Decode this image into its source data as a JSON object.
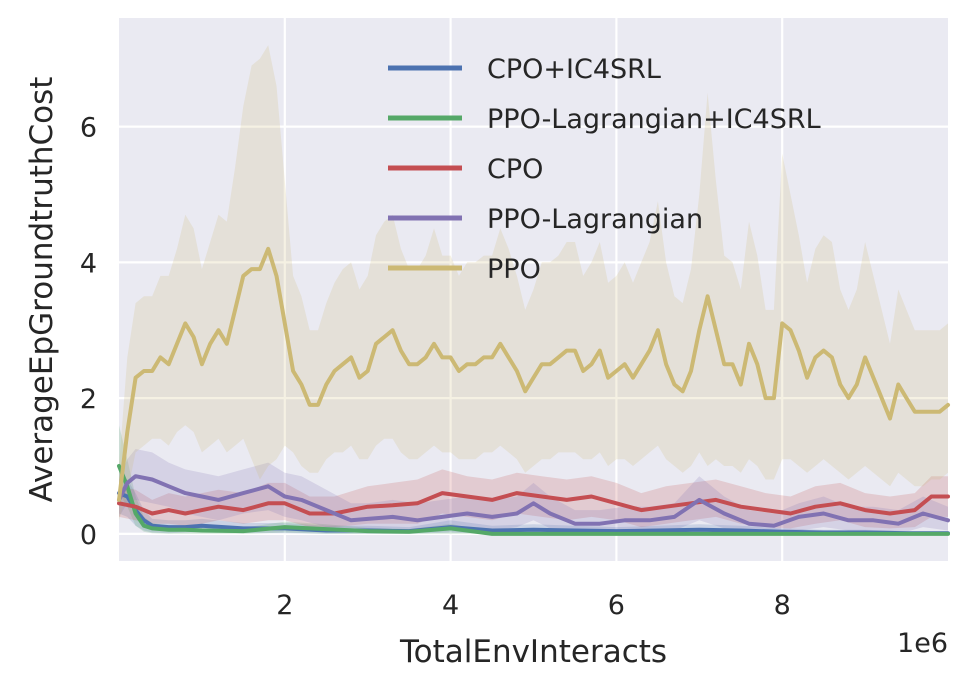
{
  "chart_data": {
    "type": "line",
    "title": "",
    "xlabel": "TotalEnvInteracts",
    "ylabel": "AverageEpGroundtruthCost",
    "x_offset_text": "1e6",
    "xlim": [
      0.0,
      10.0
    ],
    "ylim": [
      -0.4,
      7.6
    ],
    "xticks": [
      2,
      4,
      6,
      8
    ],
    "yticks": [
      0,
      2,
      4,
      6
    ],
    "xtick_labels": [
      "2",
      "4",
      "6",
      "8"
    ],
    "ytick_labels": [
      "0",
      "2",
      "4",
      "6"
    ],
    "grid": true,
    "background": "#eaeaf2",
    "legend_position": "top-right",
    "series": [
      {
        "name": "CPO+IC4SRL",
        "color": "#4c72b0",
        "x": [
          0.0,
          0.1,
          0.2,
          0.3,
          0.4,
          0.6,
          0.8,
          1.0,
          1.5,
          2.0,
          2.5,
          3.0,
          3.5,
          4.0,
          4.5,
          5.0,
          5.5,
          6.0,
          6.5,
          7.0,
          7.5,
          8.0,
          8.5,
          9.0,
          9.5,
          10.0
        ],
        "y": [
          0.6,
          0.55,
          0.35,
          0.2,
          0.12,
          0.1,
          0.1,
          0.12,
          0.08,
          0.08,
          0.05,
          0.05,
          0.04,
          0.1,
          0.05,
          0.06,
          0.05,
          0.04,
          0.05,
          0.06,
          0.05,
          0.03,
          0.02,
          0.02,
          0.01,
          0.01
        ],
        "band_lower": [
          0.3,
          0.25,
          0.12,
          0.05,
          0.02,
          0.01,
          0.02,
          0.03,
          0.01,
          0.01,
          0.0,
          0.0,
          0.0,
          0.02,
          0.0,
          0.0,
          0.0,
          0.0,
          0.0,
          0.0,
          0.0,
          0.0,
          0.0,
          0.0,
          0.0,
          0.0
        ],
        "band_upper": [
          0.9,
          0.8,
          0.6,
          0.35,
          0.22,
          0.2,
          0.2,
          0.22,
          0.16,
          0.16,
          0.12,
          0.12,
          0.1,
          0.2,
          0.12,
          0.14,
          0.12,
          0.1,
          0.12,
          0.14,
          0.12,
          0.08,
          0.06,
          0.06,
          0.04,
          0.04
        ]
      },
      {
        "name": "PPO-Lagrangian+IC4SRL",
        "color": "#55a868",
        "x": [
          0.0,
          0.1,
          0.2,
          0.3,
          0.4,
          0.6,
          0.8,
          1.0,
          1.5,
          2.0,
          2.5,
          3.0,
          3.5,
          4.0,
          4.5,
          5.0,
          5.5,
          6.0,
          6.5,
          7.0,
          7.5,
          8.0,
          8.5,
          9.0,
          9.5,
          10.0
        ],
        "y": [
          1.0,
          0.7,
          0.3,
          0.12,
          0.08,
          0.06,
          0.06,
          0.05,
          0.04,
          0.1,
          0.07,
          0.04,
          0.03,
          0.08,
          0.0,
          0.0,
          0.0,
          0.0,
          0.0,
          0.0,
          0.0,
          0.0,
          0.0,
          0.0,
          0.0,
          0.0
        ],
        "band_lower": [
          0.6,
          0.4,
          0.12,
          0.03,
          0.01,
          0.0,
          0.0,
          0.0,
          0.0,
          0.02,
          0.0,
          0.0,
          0.0,
          0.0,
          0.0,
          0.0,
          0.0,
          0.0,
          0.0,
          0.0,
          0.0,
          0.0,
          0.0,
          0.0,
          0.0,
          0.0
        ],
        "band_upper": [
          1.6,
          1.1,
          0.55,
          0.25,
          0.16,
          0.12,
          0.12,
          0.1,
          0.09,
          0.18,
          0.14,
          0.09,
          0.07,
          0.15,
          0.02,
          0.02,
          0.02,
          0.02,
          0.02,
          0.02,
          0.02,
          0.02,
          0.02,
          0.02,
          0.02,
          0.02
        ]
      },
      {
        "name": "CPO",
        "color": "#c44e52",
        "x": [
          0.0,
          0.2,
          0.4,
          0.6,
          0.8,
          1.0,
          1.2,
          1.5,
          1.8,
          2.0,
          2.3,
          2.6,
          3.0,
          3.3,
          3.6,
          3.9,
          4.2,
          4.5,
          4.8,
          5.1,
          5.4,
          5.7,
          6.0,
          6.3,
          6.6,
          6.9,
          7.2,
          7.5,
          7.8,
          8.1,
          8.4,
          8.7,
          9.0,
          9.3,
          9.6,
          9.8,
          10.0
        ],
        "y": [
          0.45,
          0.4,
          0.3,
          0.35,
          0.3,
          0.35,
          0.4,
          0.35,
          0.45,
          0.45,
          0.3,
          0.3,
          0.4,
          0.42,
          0.45,
          0.6,
          0.55,
          0.5,
          0.6,
          0.55,
          0.5,
          0.55,
          0.45,
          0.35,
          0.4,
          0.45,
          0.5,
          0.4,
          0.35,
          0.3,
          0.4,
          0.45,
          0.35,
          0.3,
          0.35,
          0.55,
          0.55
        ],
        "band_lower": [
          0.25,
          0.2,
          0.15,
          0.15,
          0.12,
          0.15,
          0.2,
          0.15,
          0.2,
          0.2,
          0.1,
          0.1,
          0.15,
          0.15,
          0.15,
          0.3,
          0.25,
          0.2,
          0.3,
          0.25,
          0.2,
          0.25,
          0.2,
          0.1,
          0.15,
          0.2,
          0.25,
          0.15,
          0.1,
          0.08,
          0.15,
          0.2,
          0.1,
          0.08,
          0.1,
          0.25,
          0.25
        ],
        "band_upper": [
          0.7,
          0.65,
          0.5,
          0.6,
          0.55,
          0.6,
          0.65,
          0.6,
          0.75,
          0.75,
          0.55,
          0.55,
          0.7,
          0.75,
          0.8,
          0.95,
          0.85,
          0.8,
          0.9,
          0.85,
          0.8,
          0.85,
          0.75,
          0.6,
          0.7,
          0.75,
          0.8,
          0.7,
          0.6,
          0.55,
          0.7,
          0.75,
          0.6,
          0.55,
          0.6,
          0.85,
          0.85
        ]
      },
      {
        "name": "PPO-Lagrangian",
        "color": "#8172b2",
        "x": [
          0.0,
          0.1,
          0.2,
          0.4,
          0.6,
          0.8,
          1.0,
          1.2,
          1.5,
          1.8,
          2.0,
          2.2,
          2.5,
          2.8,
          3.0,
          3.3,
          3.6,
          3.9,
          4.2,
          4.5,
          4.8,
          5.0,
          5.2,
          5.5,
          5.8,
          6.1,
          6.4,
          6.7,
          7.0,
          7.3,
          7.6,
          7.9,
          8.2,
          8.5,
          8.8,
          9.1,
          9.4,
          9.7,
          10.0
        ],
        "y": [
          0.5,
          0.75,
          0.85,
          0.8,
          0.7,
          0.6,
          0.55,
          0.5,
          0.6,
          0.7,
          0.55,
          0.5,
          0.35,
          0.2,
          0.22,
          0.25,
          0.2,
          0.25,
          0.3,
          0.25,
          0.3,
          0.45,
          0.3,
          0.15,
          0.15,
          0.2,
          0.2,
          0.25,
          0.5,
          0.3,
          0.15,
          0.12,
          0.25,
          0.3,
          0.2,
          0.2,
          0.15,
          0.3,
          0.2
        ],
        "band_lower": [
          0.25,
          0.45,
          0.5,
          0.45,
          0.4,
          0.3,
          0.25,
          0.2,
          0.3,
          0.35,
          0.25,
          0.2,
          0.1,
          0.05,
          0.05,
          0.08,
          0.05,
          0.08,
          0.1,
          0.05,
          0.1,
          0.2,
          0.08,
          0.0,
          0.0,
          0.05,
          0.05,
          0.05,
          0.2,
          0.08,
          0.0,
          0.0,
          0.05,
          0.1,
          0.05,
          0.05,
          0.0,
          0.1,
          0.05
        ],
        "band_upper": [
          0.8,
          1.1,
          1.25,
          1.2,
          1.05,
          0.95,
          0.9,
          0.85,
          0.95,
          1.05,
          0.9,
          0.85,
          0.65,
          0.45,
          0.45,
          0.5,
          0.45,
          0.5,
          0.55,
          0.5,
          0.55,
          0.75,
          0.55,
          0.35,
          0.35,
          0.4,
          0.4,
          0.45,
          0.85,
          0.55,
          0.35,
          0.3,
          0.45,
          0.55,
          0.4,
          0.4,
          0.35,
          0.55,
          0.4
        ]
      },
      {
        "name": "PPO",
        "color": "#ccb974",
        "x": [
          0.0,
          0.1,
          0.2,
          0.3,
          0.4,
          0.5,
          0.6,
          0.7,
          0.8,
          0.9,
          1.0,
          1.1,
          1.2,
          1.3,
          1.4,
          1.5,
          1.6,
          1.7,
          1.8,
          1.9,
          2.0,
          2.1,
          2.2,
          2.3,
          2.4,
          2.5,
          2.6,
          2.7,
          2.8,
          2.9,
          3.0,
          3.1,
          3.2,
          3.3,
          3.4,
          3.5,
          3.6,
          3.7,
          3.8,
          3.9,
          4.0,
          4.1,
          4.2,
          4.3,
          4.4,
          4.5,
          4.6,
          4.7,
          4.8,
          4.9,
          5.0,
          5.1,
          5.2,
          5.3,
          5.4,
          5.5,
          5.6,
          5.7,
          5.8,
          5.9,
          6.0,
          6.1,
          6.2,
          6.3,
          6.4,
          6.5,
          6.6,
          6.7,
          6.8,
          6.9,
          7.0,
          7.1,
          7.2,
          7.3,
          7.4,
          7.5,
          7.6,
          7.7,
          7.8,
          7.9,
          8.0,
          8.1,
          8.2,
          8.3,
          8.4,
          8.5,
          8.6,
          8.7,
          8.8,
          8.9,
          9.0,
          9.1,
          9.2,
          9.3,
          9.4,
          9.5,
          9.6,
          9.7,
          9.8,
          9.9,
          10.0
        ],
        "y": [
          0.5,
          1.5,
          2.3,
          2.4,
          2.4,
          2.6,
          2.5,
          2.8,
          3.1,
          2.9,
          2.5,
          2.8,
          3.0,
          2.8,
          3.3,
          3.8,
          3.9,
          3.9,
          4.2,
          3.8,
          3.1,
          2.4,
          2.2,
          1.9,
          1.9,
          2.2,
          2.4,
          2.5,
          2.6,
          2.3,
          2.4,
          2.8,
          2.9,
          3.0,
          2.7,
          2.5,
          2.5,
          2.6,
          2.8,
          2.6,
          2.6,
          2.4,
          2.5,
          2.5,
          2.6,
          2.6,
          2.8,
          2.6,
          2.4,
          2.1,
          2.3,
          2.5,
          2.5,
          2.6,
          2.7,
          2.7,
          2.4,
          2.5,
          2.7,
          2.3,
          2.4,
          2.5,
          2.3,
          2.5,
          2.7,
          3.0,
          2.5,
          2.2,
          2.1,
          2.4,
          3.0,
          3.5,
          3.0,
          2.5,
          2.5,
          2.2,
          2.8,
          2.5,
          2.0,
          2.0,
          3.1,
          3.0,
          2.7,
          2.3,
          2.6,
          2.7,
          2.6,
          2.2,
          2.0,
          2.2,
          2.6,
          2.3,
          2.0,
          1.7,
          2.2,
          2.0,
          1.8,
          1.8,
          1.8,
          1.8,
          1.9
        ],
        "band_lower": [
          0.2,
          0.6,
          1.2,
          1.3,
          1.4,
          1.4,
          1.3,
          1.5,
          1.6,
          1.5,
          1.2,
          1.3,
          1.4,
          1.2,
          1.3,
          1.4,
          1.1,
          0.8,
          1.0,
          1.1,
          1.3,
          1.2,
          1.0,
          0.9,
          0.9,
          1.1,
          1.2,
          1.2,
          1.3,
          1.1,
          1.1,
          1.3,
          1.4,
          1.4,
          1.2,
          1.1,
          1.1,
          1.2,
          1.3,
          1.2,
          1.2,
          1.1,
          1.1,
          1.1,
          1.2,
          1.2,
          1.3,
          1.2,
          1.1,
          0.9,
          1.0,
          1.1,
          1.1,
          1.2,
          1.2,
          1.2,
          1.1,
          1.1,
          1.2,
          1.0,
          1.1,
          1.1,
          1.0,
          1.1,
          1.2,
          1.3,
          1.1,
          1.0,
          0.9,
          1.0,
          1.2,
          1.0,
          1.1,
          1.0,
          1.0,
          0.9,
          1.1,
          1.0,
          0.8,
          0.8,
          1.1,
          1.1,
          1.0,
          0.9,
          1.0,
          1.1,
          1.0,
          0.9,
          0.8,
          0.9,
          1.0,
          0.9,
          0.8,
          0.7,
          0.9,
          0.8,
          0.7,
          0.7,
          0.8,
          0.8,
          0.9
        ],
        "band_upper": [
          1.0,
          2.6,
          3.4,
          3.5,
          3.5,
          3.8,
          3.8,
          4.2,
          4.7,
          4.5,
          3.9,
          4.3,
          4.7,
          4.6,
          5.4,
          6.3,
          6.9,
          7.0,
          7.2,
          6.6,
          5.2,
          3.8,
          3.5,
          3.0,
          3.0,
          3.4,
          3.7,
          3.9,
          4.0,
          3.6,
          3.8,
          4.4,
          4.6,
          4.7,
          4.2,
          3.9,
          3.9,
          4.1,
          4.5,
          4.1,
          4.1,
          3.8,
          4.0,
          4.0,
          4.1,
          4.1,
          4.5,
          4.2,
          3.8,
          3.3,
          3.6,
          4.0,
          4.0,
          4.1,
          4.3,
          4.3,
          3.8,
          4.0,
          4.3,
          3.7,
          3.8,
          4.0,
          3.7,
          4.0,
          4.3,
          4.9,
          4.0,
          3.5,
          3.4,
          3.9,
          5.0,
          6.5,
          5.2,
          4.1,
          4.0,
          3.6,
          4.6,
          4.1,
          3.3,
          3.3,
          5.6,
          5.0,
          4.4,
          3.7,
          4.2,
          4.4,
          4.3,
          3.6,
          3.3,
          3.6,
          4.3,
          3.8,
          3.3,
          2.8,
          3.6,
          3.3,
          3.0,
          3.0,
          3.0,
          3.0,
          3.1
        ]
      }
    ]
  }
}
